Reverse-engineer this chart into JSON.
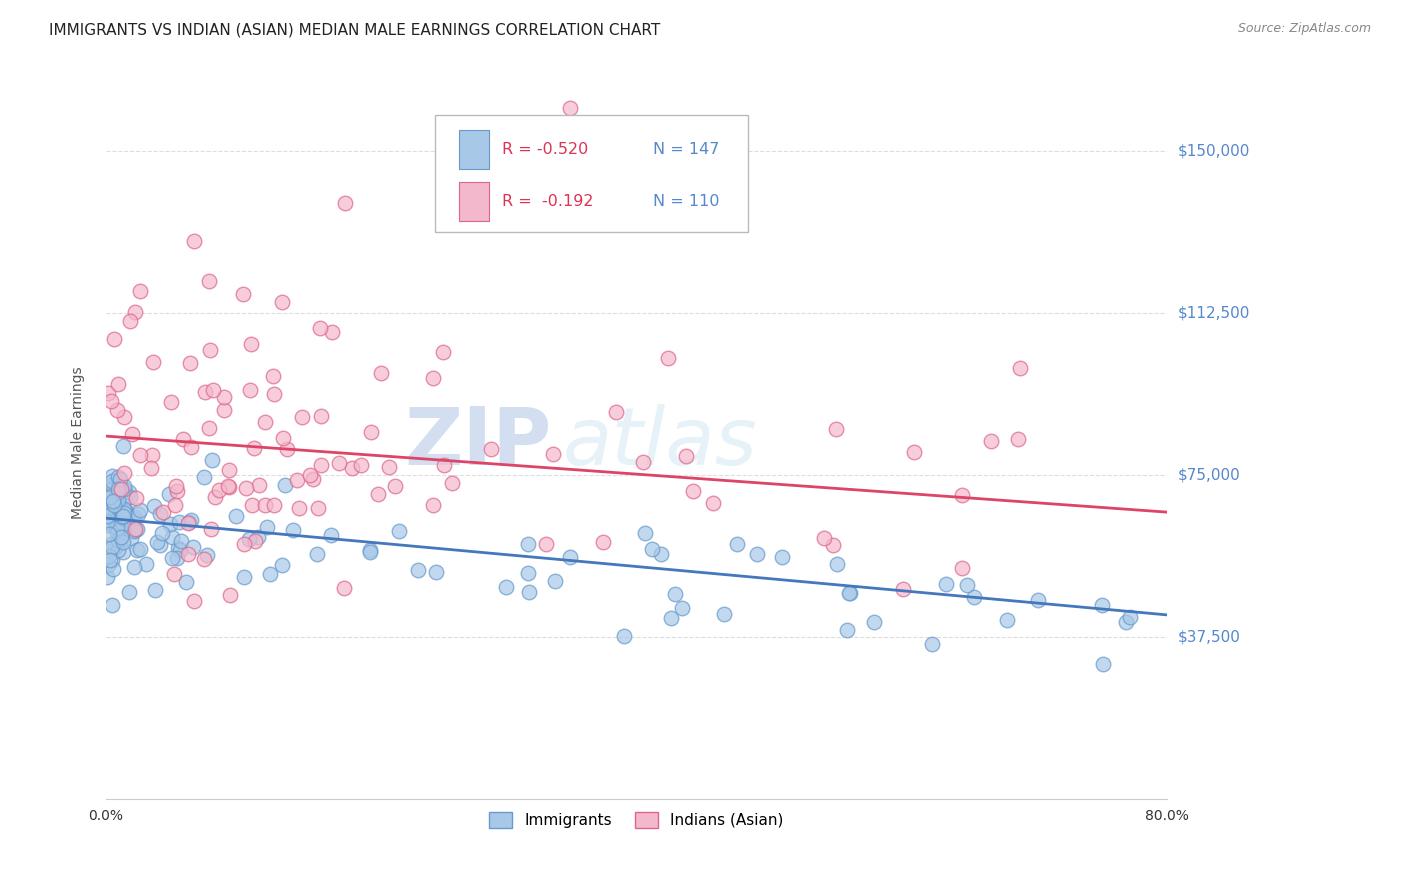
{
  "title": "IMMIGRANTS VS INDIAN (ASIAN) MEDIAN MALE EARNINGS CORRELATION CHART",
  "source": "Source: ZipAtlas.com",
  "ylabel": "Median Male Earnings",
  "xlim": [
    0.0,
    0.8
  ],
  "ylim": [
    0,
    165000
  ],
  "yticks": [
    0,
    37500,
    75000,
    112500,
    150000
  ],
  "ytick_labels": [
    "",
    "$37,500",
    "$75,000",
    "$112,500",
    "$150,000"
  ],
  "xticks": [
    0.0,
    0.1,
    0.2,
    0.3,
    0.4,
    0.5,
    0.6,
    0.7,
    0.8
  ],
  "xtick_labels": [
    "0.0%",
    "",
    "",
    "",
    "",
    "",
    "",
    "",
    "80.0%"
  ],
  "blue_color": "#a8c8e8",
  "pink_color": "#f4b8cc",
  "blue_edge_color": "#6699cc",
  "pink_edge_color": "#dd6688",
  "blue_line_color": "#4477bb",
  "pink_line_color": "#dd4466",
  "legend_R1": "R = -0.520",
  "legend_N1": "N = 147",
  "legend_R2": "R =  -0.192",
  "legend_N2": "N = 110",
  "label1": "Immigrants",
  "label2": "Indians (Asian)",
  "watermark_zip": "ZIP",
  "watermark_atlas": "atlas",
  "title_fontsize": 11,
  "axis_label_fontsize": 10,
  "tick_fontsize": 10,
  "blue_R": -0.52,
  "blue_N": 147,
  "pink_R": -0.192,
  "pink_N": 110,
  "blue_intercept": 65000,
  "blue_slope": -28000,
  "pink_intercept": 84000,
  "pink_slope": -22000,
  "background_color": "#ffffff",
  "grid_color": "#dddddd",
  "right_label_color": "#5588cc"
}
